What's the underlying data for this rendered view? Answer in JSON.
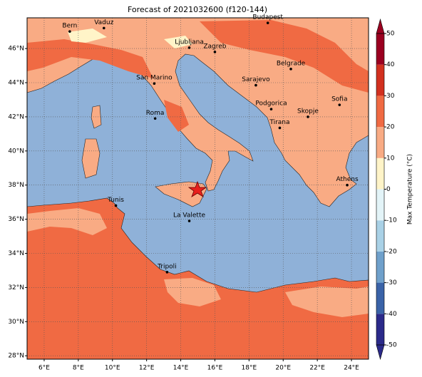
{
  "title": "Forecast of 2021032600 (f120-144)",
  "map": {
    "xlim": [
      5,
      25
    ],
    "ylim": [
      27.8,
      47.8
    ],
    "lon_ticks": [
      {
        "value": 6,
        "label": "6°E"
      },
      {
        "value": 8,
        "label": "8°E"
      },
      {
        "value": 10,
        "label": "10°E"
      },
      {
        "value": 12,
        "label": "12°E"
      },
      {
        "value": 14,
        "label": "14°E"
      },
      {
        "value": 16,
        "label": "16°E"
      },
      {
        "value": 18,
        "label": "18°E"
      },
      {
        "value": 20,
        "label": "20°E"
      },
      {
        "value": 22,
        "label": "22°E"
      },
      {
        "value": 24,
        "label": "24°E"
      }
    ],
    "lat_ticks": [
      {
        "value": 28,
        "label": "28°N"
      },
      {
        "value": 30,
        "label": "30°N"
      },
      {
        "value": 32,
        "label": "32°N"
      },
      {
        "value": 34,
        "label": "34°N"
      },
      {
        "value": 36,
        "label": "36°N"
      },
      {
        "value": 38,
        "label": "38°N"
      },
      {
        "value": 40,
        "label": "40°N"
      },
      {
        "value": 42,
        "label": "42°N"
      },
      {
        "value": 44,
        "label": "44°N"
      },
      {
        "value": 46,
        "label": "46°N"
      }
    ],
    "grid": true,
    "cities": [
      {
        "name": "Bern",
        "lon": 7.5,
        "lat": 47.0
      },
      {
        "name": "Vaduz",
        "lon": 9.5,
        "lat": 47.2
      },
      {
        "name": "Budapest",
        "lon": 19.1,
        "lat": 47.5
      },
      {
        "name": "Ljubljana",
        "lon": 14.5,
        "lat": 46.05
      },
      {
        "name": "Zagreb",
        "lon": 16.0,
        "lat": 45.8
      },
      {
        "name": "Belgrade",
        "lon": 20.45,
        "lat": 44.8
      },
      {
        "name": "San Marino",
        "lon": 12.45,
        "lat": 43.95
      },
      {
        "name": "Sarajevo",
        "lon": 18.4,
        "lat": 43.85
      },
      {
        "name": "Sofia",
        "lon": 23.3,
        "lat": 42.7
      },
      {
        "name": "Roma",
        "lon": 12.5,
        "lat": 41.9
      },
      {
        "name": "Podgorica",
        "lon": 19.3,
        "lat": 42.45
      },
      {
        "name": "Skopje",
        "lon": 21.45,
        "lat": 42.0
      },
      {
        "name": "Tirana",
        "lon": 19.8,
        "lat": 41.35
      },
      {
        "name": "Athens",
        "lon": 23.75,
        "lat": 38.0
      },
      {
        "name": "Tunis",
        "lon": 10.2,
        "lat": 36.8
      },
      {
        "name": "La Valette",
        "lon": 14.5,
        "lat": 35.9
      },
      {
        "name": "Tripoli",
        "lon": 13.2,
        "lat": 32.9
      }
    ]
  },
  "colorbar": {
    "label": "Max Temperature (°C)",
    "ticks": [
      -50,
      -40,
      -30,
      -20,
      -10,
      0,
      10,
      20,
      30,
      40,
      50
    ],
    "colors": [
      "#2b2a8a",
      "#3a63a8",
      "#6fa0cb",
      "#a9d1e6",
      "#e3f4f8",
      "#fff4c8",
      "#f9ab84",
      "#f06a43",
      "#d2301f",
      "#9b0020"
    ]
  }
}
